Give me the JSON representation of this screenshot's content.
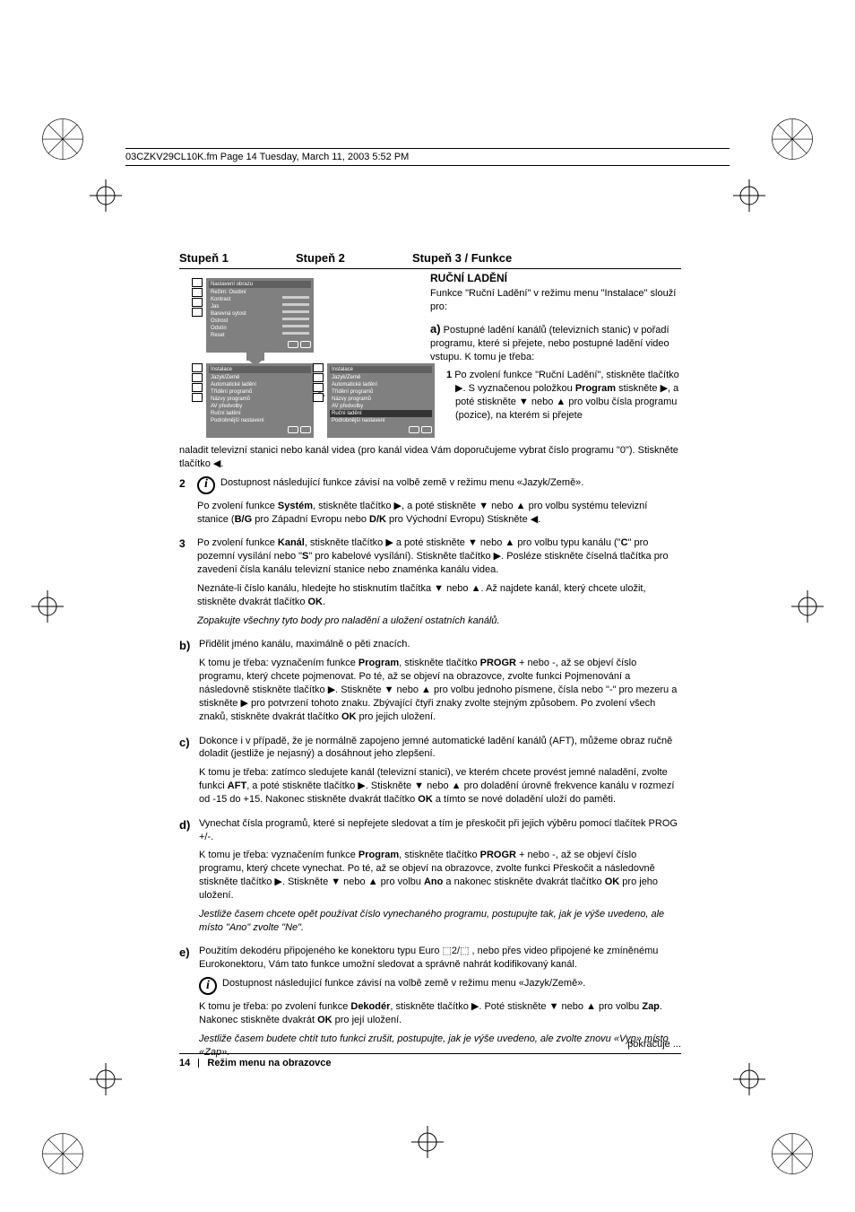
{
  "header": "03CZKV29CL10K.fm  Page 14  Tuesday, March 11, 2003  5:52 PM",
  "steps": {
    "s1": "Stupeň  1",
    "s2": "Stupeň  2",
    "s3": "Stupeň 3 / Funkce"
  },
  "menu_obraz": {
    "title": "Nastavení obrazu",
    "items": [
      "Režim: Osobní",
      "Kontrast",
      "Jas",
      "Barevná sytost",
      "Ostrost",
      "Odstín",
      "Reset"
    ]
  },
  "menu_inst1": {
    "title": "Instalace",
    "items": [
      "Jazyk/Země",
      "Automatické ladění",
      "Třídění programů",
      "Názvy programů",
      "AV předvolby",
      "Ruční ladění",
      "Podrobnější nastavení"
    ]
  },
  "menu_inst2": {
    "title": "Instalace",
    "items": [
      "Jazyk/Země",
      "Automatické ladění",
      "Třídění programů",
      "Názvy programů",
      "AV předvolby",
      "Ruční ladění",
      "Podrobnější nastavení"
    ],
    "selected": 5
  },
  "main": {
    "h": "RUČNÍ LADĚNÍ",
    "intro": "Funkce \"Ruční Ladění\" v režimu menu \"Instalace\" slouží pro:",
    "a_label": "a)",
    "a_text": "Postupné ladění kanálů (televizních stanic) v pořadí programu, které si přejete, nebo postupné ladění video vstupu. K tomu je třeba:",
    "a1_n": "1",
    "a1": "Po zvolení funkce \"Ruční Ladění\", stiskněte tlačítko ▶. S vyznačenou položkou Program stiskněte ▶, a poté stiskněte ▼ nebo ▲ pro volbu čísla programu (pozice), na kterém si přejete"
  },
  "body": {
    "cont1": "naladit televizní stanici nebo kanál videa (pro kanál videa Vám doporučujeme vybrat číslo programu \"0\"). Stiskněte tlačítko ◀.",
    "n2": "2",
    "info1": "Dostupnost následující funkce závisí na volbě země v režimu menu «Jazyk/Země».",
    "p2b": "Po zvolení funkce Systém, stiskněte tlačítko ▶, a poté stiskněte ▼ nebo ▲ pro volbu systému televizní stanice (B/G pro Západní Evropu nebo D/K pro Východní Evropu) Stiskněte ◀.",
    "n3": "3",
    "p3": "Po zvolení funkce Kanál, stiskněte tlačítko ▶ a poté stiskněte ▼ nebo ▲ pro volbu typu kanálu (\"C\" pro pozemní vysílání nebo \"S\" pro kabelové vysílání). Stiskněte tlačítko ▶. Posléze stiskněte číselná tlačítka pro zavedení čísla kanálu televizní stanice nebo znaménka kanálu videa.",
    "p3b": "Neznáte-li číslo kanálu, hledejte ho stisknutím tlačítka ▼ nebo ▲. Až najdete kanál, který chcete uložit, stiskněte dvakrát tlačítko OK.",
    "p3c": "Zopakujte všechny tyto body pro naladění a uložení ostatních kanálů.",
    "lb": "b)",
    "pb": "Přidělit jméno kanálu, maximálně o pěti znacích.",
    "pb2": "K tomu je třeba: vyznačením funkce Program, stiskněte tlačítko PROGR + nebo -, až se objeví číslo programu, který chcete pojmenovat. Po té, až se objeví na obrazovce, zvolte funkci Pojmenování a následovně stiskněte tlačítko ▶. Stiskněte ▼ nebo ▲ pro volbu jednoho písmene, čísla nebo \"-\" pro mezeru a stiskněte ▶ pro potvrzení tohoto znaku. Zbývající čtyři znaky zvolte stejným způsobem. Po zvolení všech znaků, stiskněte dvakrát tlačítko OK pro jejich uložení.",
    "lc": "c)",
    "pc": "Dokonce i v případě, že je normálně zapojeno jemné automatické ladění kanálů (AFT), můžeme obraz ručně doladit (jestliže je nejasný) a dosáhnout jeho zlepšení.",
    "pc2": "K tomu je třeba: zatímco sledujete kanál (televizní stanici), ve kterém chcete provést jemné naladění, zvolte funkci AFT, a poté stiskněte tlačítko ▶. Stiskněte ▼ nebo ▲ pro doladění úrovně frekvence kanálu v rozmezí od -15 do +15. Nakonec stiskněte dvakrát tlačítko OK a tímto se nové doladění uloží do paměti.",
    "ld": "d)",
    "pd": "Vynechat čísla programů, které si nepřejete sledovat a tím je přeskočit při jejich výběru pomocí tlačítek PROG +/-.",
    "pd2": "K tomu je třeba: vyznačením funkce Program, stiskněte tlačítko PROGR + nebo -, až se objeví číslo programu, který chcete vynechat. Po té, až se objeví na obrazovce, zvolte funkci Přeskočit a následovně stiskněte tlačítko ▶. Stiskněte ▼ nebo ▲ pro volbu Ano a nakonec stiskněte dvakrát tlačítko OK pro jeho uložení.",
    "pd3": "Jestliže časem chcete opět používat číslo vynechaného programu, postupujte tak, jak je výše uvedeno, ale místo \"Ano\" zvolte \"Ne\".",
    "le": "e)",
    "pe": "Použitím dekodéru připojeného ke konektoru typu Euro ⬚2/⬚ , nebo přes video připojené ke zmíněnému Eurokonektoru, Vám tato funkce umožní sledovat a správně nahrát kodifikovaný kanál.",
    "info2": "Dostupnost následující funkce závisí na volbě země v režimu menu «Jazyk/Země».",
    "pe2": "K tomu je třeba: po zvolení funkce Dekodér, stiskněte tlačítko ▶. Poté stiskněte ▼ nebo ▲ pro volbu Zap. Nakonec stiskněte dvakrát OK pro její uložení.",
    "pe3": "Jestliže časem budete chtít tuto funkci zrušit, postupujte, jak je výše uvedeno, ale zvolte znovu «Vyp» místo «Zap»."
  },
  "footer": {
    "cont": "pokračuje ...",
    "page": "14",
    "title": "Režim menu na obrazovce"
  }
}
